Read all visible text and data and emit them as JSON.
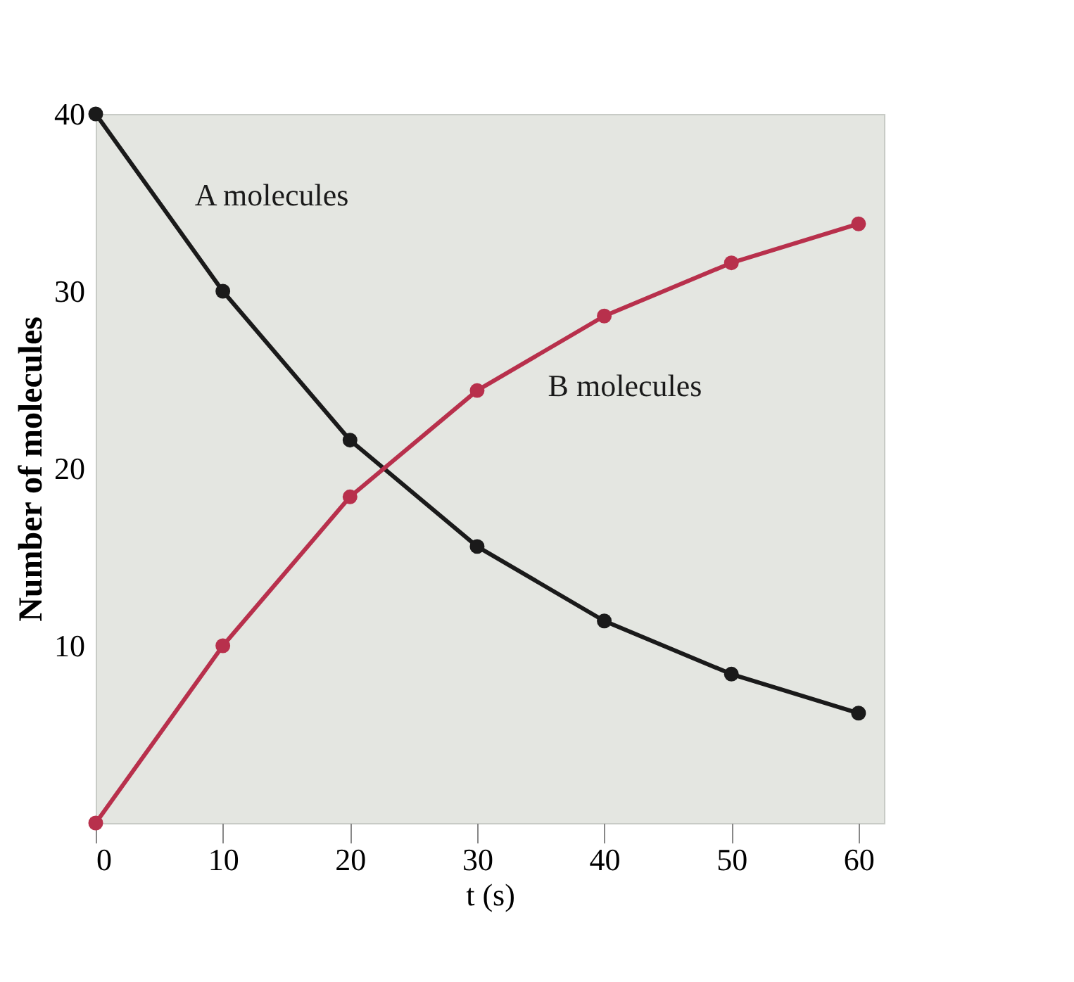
{
  "chart_data": {
    "type": "line",
    "xlabel": "t (s)",
    "ylabel": "Number of molecules",
    "x": [
      0,
      10,
      20,
      30,
      40,
      50,
      60
    ],
    "series": [
      {
        "name": "A molecules",
        "color": "#1a1a1a",
        "values": [
          40,
          30,
          21.6,
          15.6,
          11.4,
          8.4,
          6.2
        ]
      },
      {
        "name": "B molecules",
        "color": "#b8304c",
        "values": [
          0,
          10,
          18.4,
          24.4,
          28.6,
          31.6,
          33.8
        ]
      }
    ],
    "xlim": [
      0,
      62
    ],
    "ylim": [
      0,
      40
    ],
    "xticks": [
      0,
      10,
      20,
      30,
      40,
      50,
      60
    ],
    "yticks": [
      10,
      20,
      30,
      40
    ],
    "grid": false,
    "legend": false,
    "marker": "circle",
    "line_style": "solid"
  }
}
